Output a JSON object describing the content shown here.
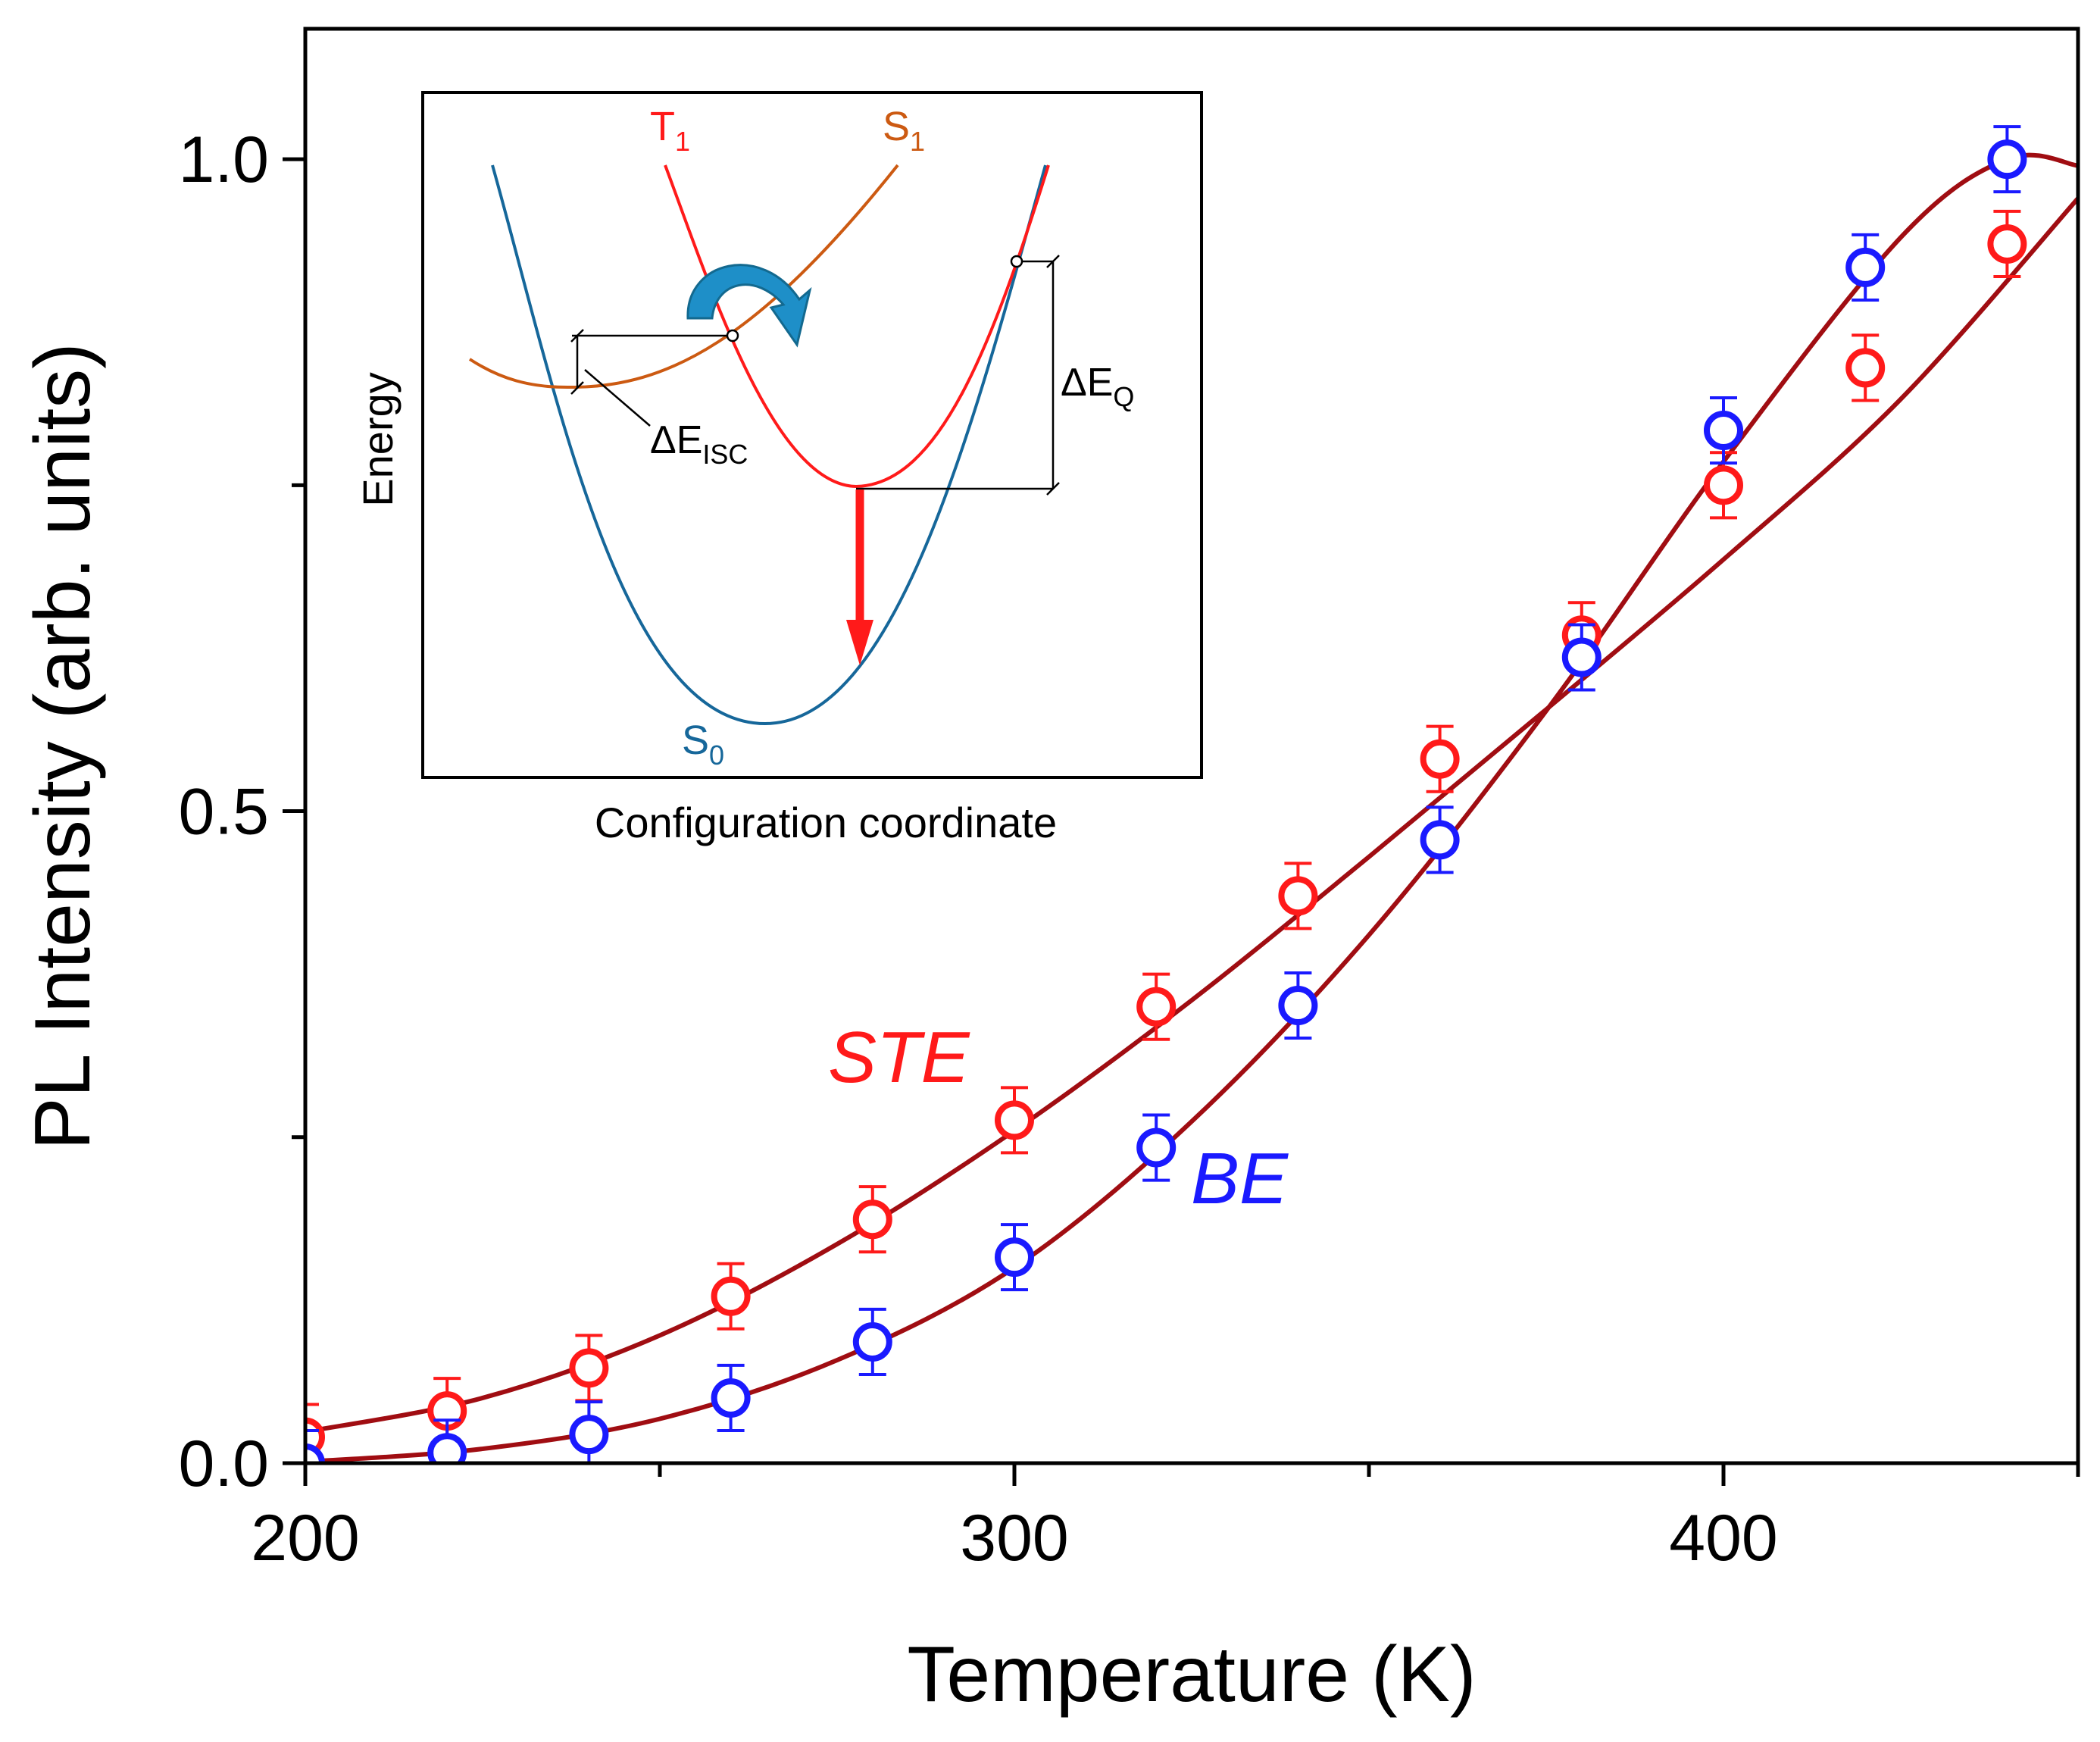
{
  "chart_data": {
    "type": "scatter",
    "xlabel": "Temperature (K)",
    "ylabel": "PL Intensity (arb. units)",
    "xlim": [
      200,
      450
    ],
    "ylim": [
      0,
      1.1
    ],
    "x_ticks": [
      200,
      300,
      400
    ],
    "x_tick_labels": [
      "200",
      "300",
      "400"
    ],
    "x_minor_ticks": [
      250,
      350,
      450
    ],
    "y_ticks": [
      0,
      0.5,
      1.0
    ],
    "y_tick_labels": [
      "0.0",
      "0.5",
      "1.0"
    ],
    "y_minor_ticks": [
      0.25,
      0.75
    ],
    "series": [
      {
        "name": "STE",
        "color": "#ff1a1a",
        "x": [
          200,
          220,
          240,
          260,
          280,
          300,
          320,
          340,
          360,
          380,
          400,
          420,
          440
        ],
        "y": [
          0.02,
          0.04,
          0.073,
          0.128,
          0.187,
          0.263,
          0.35,
          0.435,
          0.54,
          0.635,
          0.75,
          0.84,
          0.935
        ],
        "yerr": [
          0.025,
          0.025,
          0.025,
          0.025,
          0.025,
          0.025,
          0.025,
          0.025,
          0.025,
          0.025,
          0.025,
          0.025,
          0.025
        ],
        "fit_x": [
          200,
          225,
          250,
          275,
          300,
          325,
          350,
          375,
          400,
          425,
          450
        ],
        "fit_y": [
          0.024,
          0.05,
          0.098,
          0.168,
          0.255,
          0.355,
          0.465,
          0.578,
          0.693,
          0.816,
          0.97
        ]
      },
      {
        "name": "BE",
        "color": "#1a1aff",
        "x": [
          200,
          220,
          240,
          260,
          280,
          300,
          320,
          340,
          360,
          380,
          400,
          420,
          440
        ],
        "y": [
          0.0,
          0.008,
          0.022,
          0.05,
          0.093,
          0.158,
          0.242,
          0.351,
          0.478,
          0.618,
          0.792,
          0.917,
          1.0
        ],
        "yerr": [
          0.025,
          0.025,
          0.025,
          0.025,
          0.025,
          0.025,
          0.025,
          0.025,
          0.025,
          0.025,
          0.025,
          0.025,
          0.025
        ],
        "fit_x": [
          200,
          225,
          250,
          275,
          300,
          325,
          350,
          375,
          400,
          425,
          440,
          450
        ],
        "fit_y": [
          0.001,
          0.011,
          0.034,
          0.079,
          0.15,
          0.262,
          0.405,
          0.577,
          0.768,
          0.94,
          1.0,
          0.995
        ]
      }
    ],
    "fit_color": "#a00d12",
    "annotations": {
      "ste_label": "STE",
      "be_label": "BE"
    },
    "inset": {
      "type": "diagram",
      "xlabel": "Configuration coordinate",
      "ylabel": "Energy",
      "curves": {
        "t1": {
          "base": "T",
          "sub": "1",
          "color": "#ff1a1a"
        },
        "s1": {
          "base": "S",
          "sub": "1",
          "color": "#cc5a12"
        },
        "s0": {
          "base": "S",
          "sub": "0",
          "color": "#16679a"
        }
      },
      "labels": {
        "delta_isc": {
          "base": "ΔE",
          "sub": "ISC"
        },
        "delta_q": {
          "base": "ΔE",
          "sub": "Q"
        }
      },
      "arrow_color": "#1e8fc8"
    }
  }
}
